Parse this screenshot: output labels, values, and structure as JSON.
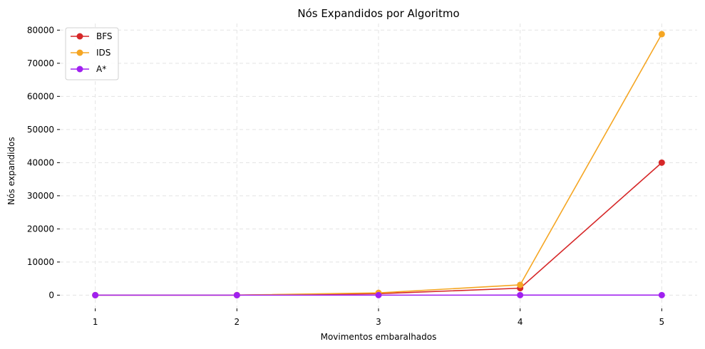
{
  "chart_data": {
    "type": "line",
    "title": "Nós Expandidos por Algoritmo",
    "xlabel": "Movimentos embaralhados",
    "ylabel": "Nós expandidos",
    "x": [
      1,
      2,
      3,
      4,
      5
    ],
    "xlim": [
      0.75,
      5.25
    ],
    "ylim": [
      -4000,
      82000
    ],
    "xticks": [
      1,
      2,
      3,
      4,
      5
    ],
    "yticks": [
      0,
      10000,
      20000,
      30000,
      40000,
      50000,
      60000,
      70000,
      80000
    ],
    "grid": true,
    "legend_position": "top-left",
    "series": [
      {
        "name": "BFS",
        "color": "#d62728",
        "values": [
          5,
          15,
          450,
          2100,
          40000
        ]
      },
      {
        "name": "IDS",
        "color": "#f5a623",
        "values": [
          5,
          20,
          700,
          3100,
          78800
        ]
      },
      {
        "name": "A*",
        "color": "#a020f0",
        "values": [
          2,
          3,
          5,
          8,
          12
        ]
      }
    ]
  }
}
